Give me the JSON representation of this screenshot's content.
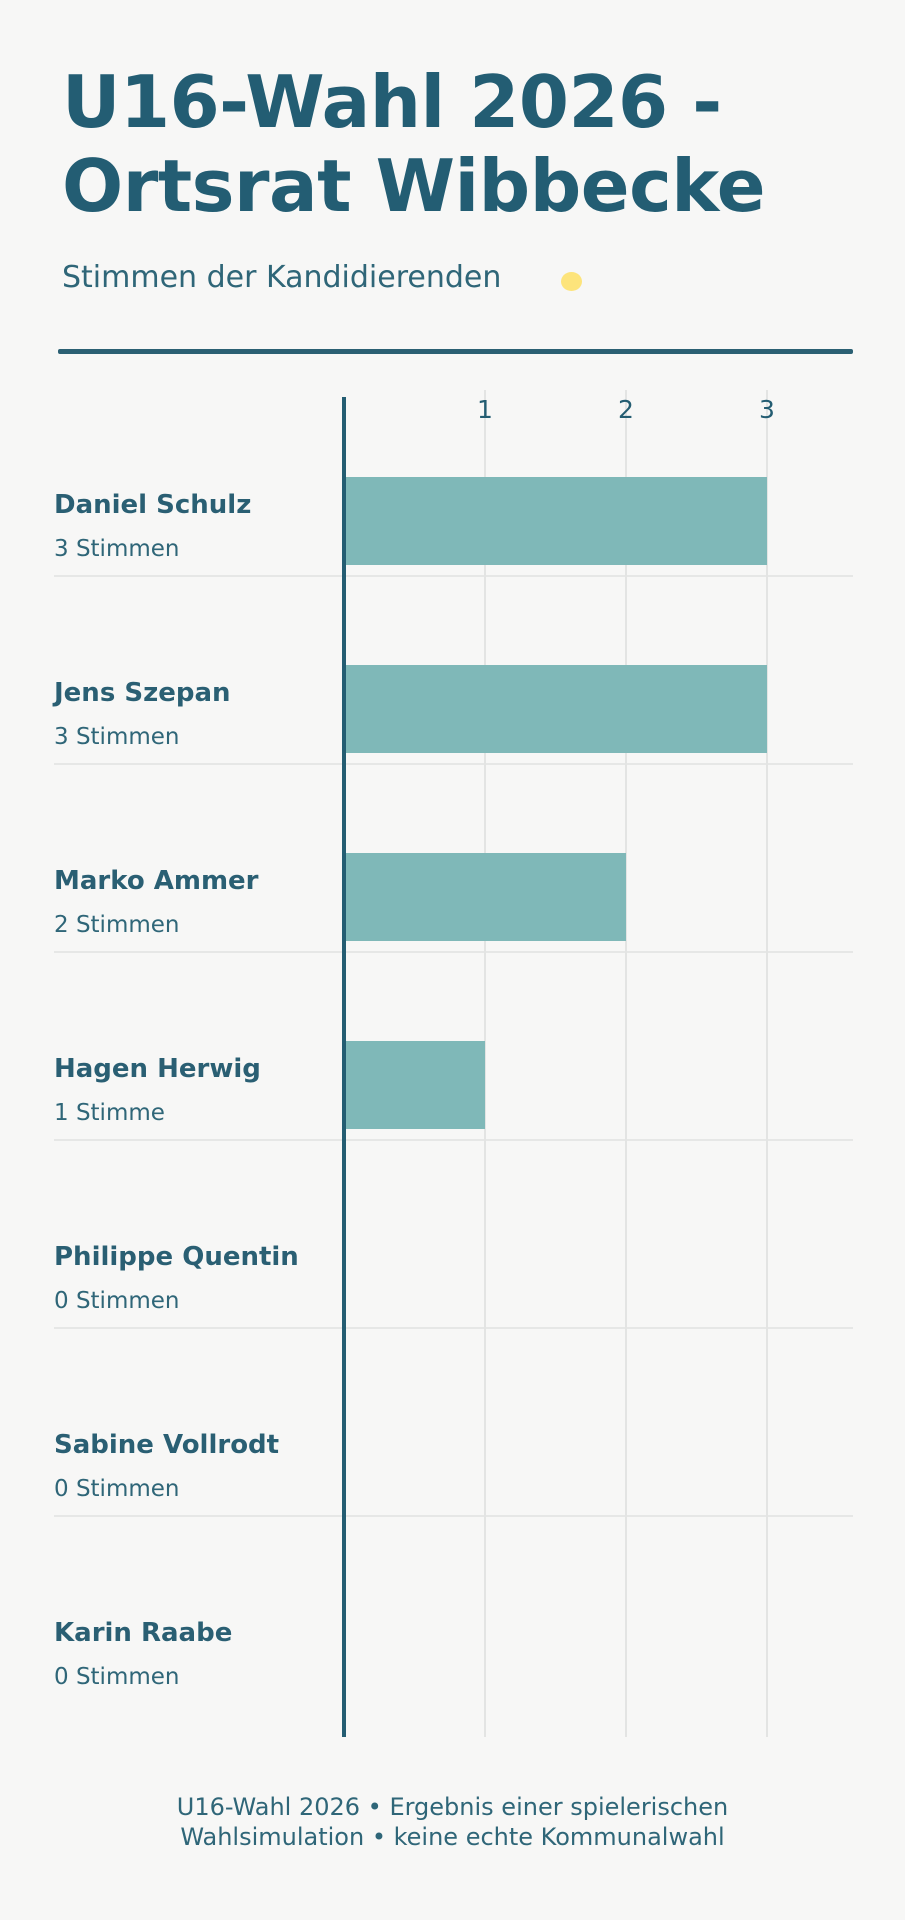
{
  "header": {
    "title": "U16-Wahl 2026 - Ortsrat Wibbecke",
    "subtitle": "Stimmen der Kandidierenden"
  },
  "chart_data": {
    "type": "bar",
    "orientation": "horizontal",
    "categories": [
      "Daniel Schulz",
      "Jens Szepan",
      "Marko Ammer",
      "Hagen Herwig",
      "Philippe Quentin",
      "Sabine Vollrodt",
      "Karin Raabe"
    ],
    "values": [
      3,
      3,
      2,
      1,
      0,
      0,
      0
    ],
    "value_labels": [
      "3 Stimmen",
      "3 Stimmen",
      "2 Stimmen",
      "1 Stimme",
      "0 Stimmen",
      "0 Stimmen",
      "0 Stimmen"
    ],
    "xticks": [
      "1",
      "2",
      "3"
    ],
    "xlim": [
      0,
      3
    ],
    "grid": true,
    "bar_color": "#7fb8b8",
    "axis_color": "#245d72"
  },
  "footer": {
    "line1": "U16-Wahl 2026 • Ergebnis einer spielerischen",
    "line2": "Wahlsimulation • keine echte Kommunalwahl"
  },
  "colors": {
    "background": "#f7f7f6",
    "accent": "#245d72",
    "bar": "#7fb8b8",
    "highlight": "#fde47b"
  }
}
